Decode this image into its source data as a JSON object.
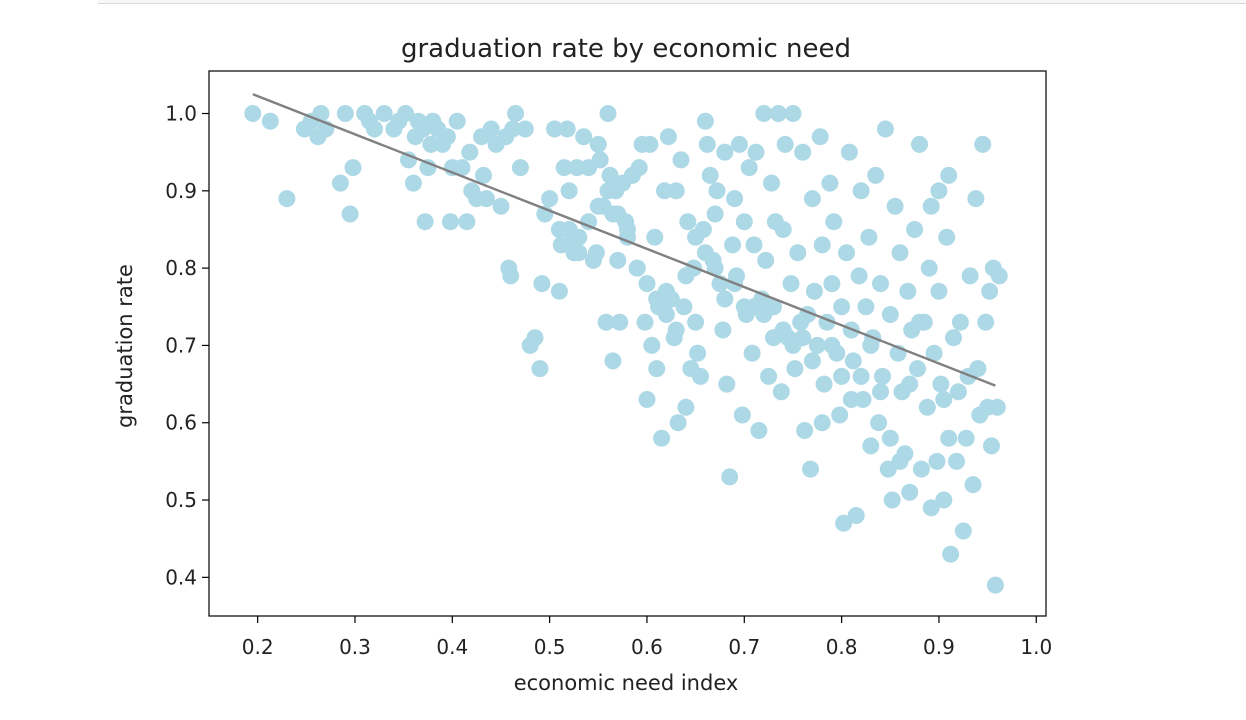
{
  "chart_data": {
    "type": "scatter",
    "title": "graduation rate by economic need",
    "xlabel": "economic need index",
    "ylabel": "graduation rate",
    "xlim": [
      0.15,
      1.01
    ],
    "ylim": [
      0.35,
      1.055
    ],
    "xticks": [
      "0.2",
      "0.3",
      "0.4",
      "0.5",
      "0.6",
      "0.7",
      "0.8",
      "0.9",
      "1.0"
    ],
    "yticks": [
      "0.4",
      "0.5",
      "0.6",
      "0.7",
      "0.8",
      "0.9",
      "1.0"
    ],
    "grid": false,
    "point_color": "#add8e6",
    "line_color": "#808080",
    "trendline": {
      "x": [
        0.195,
        0.958
      ],
      "y": [
        1.025,
        0.648
      ]
    },
    "points": [
      [
        0.195,
        1.0
      ],
      [
        0.213,
        0.99
      ],
      [
        0.23,
        0.89
      ],
      [
        0.248,
        0.98
      ],
      [
        0.255,
        0.99
      ],
      [
        0.262,
        0.97
      ],
      [
        0.265,
        1.0
      ],
      [
        0.27,
        0.98
      ],
      [
        0.285,
        0.91
      ],
      [
        0.29,
        1.0
      ],
      [
        0.295,
        0.87
      ],
      [
        0.298,
        0.93
      ],
      [
        0.31,
        1.0
      ],
      [
        0.315,
        0.99
      ],
      [
        0.32,
        0.98
      ],
      [
        0.33,
        1.0
      ],
      [
        0.34,
        0.98
      ],
      [
        0.345,
        0.99
      ],
      [
        0.352,
        1.0
      ],
      [
        0.355,
        0.94
      ],
      [
        0.36,
        0.91
      ],
      [
        0.362,
        0.97
      ],
      [
        0.365,
        0.99
      ],
      [
        0.37,
        0.98
      ],
      [
        0.372,
        0.86
      ],
      [
        0.375,
        0.93
      ],
      [
        0.378,
        0.96
      ],
      [
        0.38,
        0.99
      ],
      [
        0.385,
        0.98
      ],
      [
        0.39,
        0.96
      ],
      [
        0.395,
        0.97
      ],
      [
        0.398,
        0.86
      ],
      [
        0.4,
        0.93
      ],
      [
        0.405,
        0.99
      ],
      [
        0.41,
        0.93
      ],
      [
        0.415,
        0.86
      ],
      [
        0.418,
        0.95
      ],
      [
        0.42,
        0.9
      ],
      [
        0.425,
        0.89
      ],
      [
        0.43,
        0.97
      ],
      [
        0.432,
        0.92
      ],
      [
        0.435,
        0.89
      ],
      [
        0.44,
        0.98
      ],
      [
        0.445,
        0.96
      ],
      [
        0.45,
        0.88
      ],
      [
        0.455,
        0.97
      ],
      [
        0.458,
        0.8
      ],
      [
        0.46,
        0.79
      ],
      [
        0.462,
        0.98
      ],
      [
        0.465,
        1.0
      ],
      [
        0.47,
        0.93
      ],
      [
        0.475,
        0.98
      ],
      [
        0.48,
        0.7
      ],
      [
        0.485,
        0.71
      ],
      [
        0.49,
        0.67
      ],
      [
        0.492,
        0.78
      ],
      [
        0.495,
        0.87
      ],
      [
        0.5,
        0.89
      ],
      [
        0.505,
        0.98
      ],
      [
        0.51,
        0.77
      ],
      [
        0.51,
        0.85
      ],
      [
        0.512,
        0.83
      ],
      [
        0.515,
        0.93
      ],
      [
        0.518,
        0.98
      ],
      [
        0.52,
        0.9
      ],
      [
        0.522,
        0.83
      ],
      [
        0.525,
        0.82
      ],
      [
        0.528,
        0.93
      ],
      [
        0.53,
        0.84
      ],
      [
        0.535,
        0.97
      ],
      [
        0.54,
        0.93
      ],
      [
        0.545,
        0.81
      ],
      [
        0.548,
        0.82
      ],
      [
        0.55,
        0.96
      ],
      [
        0.552,
        0.94
      ],
      [
        0.555,
        0.88
      ],
      [
        0.558,
        0.73
      ],
      [
        0.56,
        1.0
      ],
      [
        0.562,
        0.92
      ],
      [
        0.565,
        0.87
      ],
      [
        0.565,
        0.68
      ],
      [
        0.568,
        0.9
      ],
      [
        0.57,
        0.81
      ],
      [
        0.572,
        0.73
      ],
      [
        0.575,
        0.91
      ],
      [
        0.578,
        0.86
      ],
      [
        0.58,
        0.84
      ],
      [
        0.585,
        0.92
      ],
      [
        0.59,
        0.8
      ],
      [
        0.592,
        0.93
      ],
      [
        0.595,
        0.96
      ],
      [
        0.598,
        0.73
      ],
      [
        0.6,
        0.63
      ],
      [
        0.603,
        0.96
      ],
      [
        0.605,
        0.7
      ],
      [
        0.608,
        0.84
      ],
      [
        0.61,
        0.67
      ],
      [
        0.612,
        0.75
      ],
      [
        0.615,
        0.58
      ],
      [
        0.618,
        0.9
      ],
      [
        0.62,
        0.77
      ],
      [
        0.622,
        0.97
      ],
      [
        0.625,
        0.76
      ],
      [
        0.628,
        0.71
      ],
      [
        0.63,
        0.9
      ],
      [
        0.632,
        0.6
      ],
      [
        0.635,
        0.94
      ],
      [
        0.638,
        0.75
      ],
      [
        0.64,
        0.62
      ],
      [
        0.642,
        0.86
      ],
      [
        0.645,
        0.67
      ],
      [
        0.648,
        0.8
      ],
      [
        0.65,
        0.73
      ],
      [
        0.652,
        0.69
      ],
      [
        0.655,
        0.66
      ],
      [
        0.658,
        0.85
      ],
      [
        0.66,
        0.99
      ],
      [
        0.662,
        0.96
      ],
      [
        0.665,
        0.92
      ],
      [
        0.668,
        0.81
      ],
      [
        0.67,
        0.87
      ],
      [
        0.672,
        0.9
      ],
      [
        0.675,
        0.78
      ],
      [
        0.678,
        0.72
      ],
      [
        0.68,
        0.95
      ],
      [
        0.682,
        0.65
      ],
      [
        0.685,
        0.53
      ],
      [
        0.688,
        0.83
      ],
      [
        0.69,
        0.89
      ],
      [
        0.692,
        0.79
      ],
      [
        0.695,
        0.96
      ],
      [
        0.698,
        0.61
      ],
      [
        0.7,
        0.86
      ],
      [
        0.702,
        0.74
      ],
      [
        0.705,
        0.93
      ],
      [
        0.708,
        0.69
      ],
      [
        0.71,
        0.83
      ],
      [
        0.712,
        0.95
      ],
      [
        0.715,
        0.59
      ],
      [
        0.718,
        0.76
      ],
      [
        0.72,
        1.0
      ],
      [
        0.722,
        0.81
      ],
      [
        0.725,
        0.66
      ],
      [
        0.728,
        0.91
      ],
      [
        0.73,
        0.75
      ],
      [
        0.732,
        0.86
      ],
      [
        0.735,
        1.0
      ],
      [
        0.738,
        0.64
      ],
      [
        0.74,
        0.85
      ],
      [
        0.742,
        0.96
      ],
      [
        0.745,
        0.71
      ],
      [
        0.748,
        0.78
      ],
      [
        0.75,
        1.0
      ],
      [
        0.752,
        0.67
      ],
      [
        0.755,
        0.82
      ],
      [
        0.758,
        0.73
      ],
      [
        0.76,
        0.95
      ],
      [
        0.762,
        0.59
      ],
      [
        0.765,
        0.74
      ],
      [
        0.768,
        0.54
      ],
      [
        0.77,
        0.89
      ],
      [
        0.772,
        0.77
      ],
      [
        0.775,
        0.7
      ],
      [
        0.778,
        0.97
      ],
      [
        0.78,
        0.83
      ],
      [
        0.782,
        0.65
      ],
      [
        0.785,
        0.73
      ],
      [
        0.788,
        0.91
      ],
      [
        0.79,
        0.78
      ],
      [
        0.792,
        0.86
      ],
      [
        0.795,
        0.69
      ],
      [
        0.798,
        0.61
      ],
      [
        0.8,
        0.75
      ],
      [
        0.802,
        0.47
      ],
      [
        0.805,
        0.82
      ],
      [
        0.808,
        0.95
      ],
      [
        0.81,
        0.72
      ],
      [
        0.812,
        0.68
      ],
      [
        0.815,
        0.48
      ],
      [
        0.818,
        0.79
      ],
      [
        0.82,
        0.9
      ],
      [
        0.822,
        0.63
      ],
      [
        0.825,
        0.75
      ],
      [
        0.828,
        0.84
      ],
      [
        0.83,
        0.57
      ],
      [
        0.832,
        0.71
      ],
      [
        0.835,
        0.92
      ],
      [
        0.838,
        0.6
      ],
      [
        0.84,
        0.78
      ],
      [
        0.842,
        0.66
      ],
      [
        0.845,
        0.98
      ],
      [
        0.848,
        0.54
      ],
      [
        0.85,
        0.74
      ],
      [
        0.852,
        0.5
      ],
      [
        0.855,
        0.88
      ],
      [
        0.858,
        0.69
      ],
      [
        0.86,
        0.82
      ],
      [
        0.862,
        0.64
      ],
      [
        0.865,
        0.56
      ],
      [
        0.868,
        0.77
      ],
      [
        0.87,
        0.51
      ],
      [
        0.872,
        0.72
      ],
      [
        0.875,
        0.85
      ],
      [
        0.878,
        0.67
      ],
      [
        0.88,
        0.96
      ],
      [
        0.882,
        0.54
      ],
      [
        0.885,
        0.73
      ],
      [
        0.888,
        0.62
      ],
      [
        0.89,
        0.8
      ],
      [
        0.892,
        0.49
      ],
      [
        0.895,
        0.69
      ],
      [
        0.898,
        0.55
      ],
      [
        0.9,
        0.77
      ],
      [
        0.902,
        0.65
      ],
      [
        0.905,
        0.5
      ],
      [
        0.908,
        0.84
      ],
      [
        0.91,
        0.92
      ],
      [
        0.912,
        0.43
      ],
      [
        0.915,
        0.71
      ],
      [
        0.918,
        0.55
      ],
      [
        0.92,
        0.64
      ],
      [
        0.922,
        0.73
      ],
      [
        0.925,
        0.46
      ],
      [
        0.928,
        0.58
      ],
      [
        0.93,
        0.66
      ],
      [
        0.932,
        0.79
      ],
      [
        0.935,
        0.52
      ],
      [
        0.938,
        0.89
      ],
      [
        0.94,
        0.67
      ],
      [
        0.942,
        0.61
      ],
      [
        0.945,
        0.96
      ],
      [
        0.948,
        0.73
      ],
      [
        0.95,
        0.62
      ],
      [
        0.952,
        0.77
      ],
      [
        0.954,
        0.57
      ],
      [
        0.956,
        0.8
      ],
      [
        0.958,
        0.39
      ],
      [
        0.96,
        0.62
      ],
      [
        0.962,
        0.79
      ],
      [
        0.905,
        0.63
      ],
      [
        0.91,
        0.58
      ],
      [
        0.9,
        0.9
      ],
      [
        0.892,
        0.88
      ],
      [
        0.88,
        0.73
      ],
      [
        0.87,
        0.65
      ],
      [
        0.86,
        0.55
      ],
      [
        0.85,
        0.58
      ],
      [
        0.84,
        0.64
      ],
      [
        0.83,
        0.7
      ],
      [
        0.82,
        0.66
      ],
      [
        0.81,
        0.63
      ],
      [
        0.8,
        0.66
      ],
      [
        0.79,
        0.7
      ],
      [
        0.78,
        0.6
      ],
      [
        0.77,
        0.68
      ],
      [
        0.76,
        0.71
      ],
      [
        0.75,
        0.7
      ],
      [
        0.74,
        0.72
      ],
      [
        0.73,
        0.71
      ],
      [
        0.72,
        0.74
      ],
      [
        0.71,
        0.75
      ],
      [
        0.7,
        0.75
      ],
      [
        0.69,
        0.78
      ],
      [
        0.68,
        0.76
      ],
      [
        0.67,
        0.8
      ],
      [
        0.66,
        0.82
      ],
      [
        0.65,
        0.84
      ],
      [
        0.64,
        0.79
      ],
      [
        0.63,
        0.72
      ],
      [
        0.62,
        0.74
      ],
      [
        0.61,
        0.76
      ],
      [
        0.6,
        0.78
      ],
      [
        0.59,
        0.8
      ],
      [
        0.58,
        0.85
      ],
      [
        0.57,
        0.87
      ],
      [
        0.56,
        0.9
      ],
      [
        0.55,
        0.88
      ],
      [
        0.54,
        0.86
      ],
      [
        0.53,
        0.82
      ],
      [
        0.52,
        0.85
      ]
    ]
  }
}
